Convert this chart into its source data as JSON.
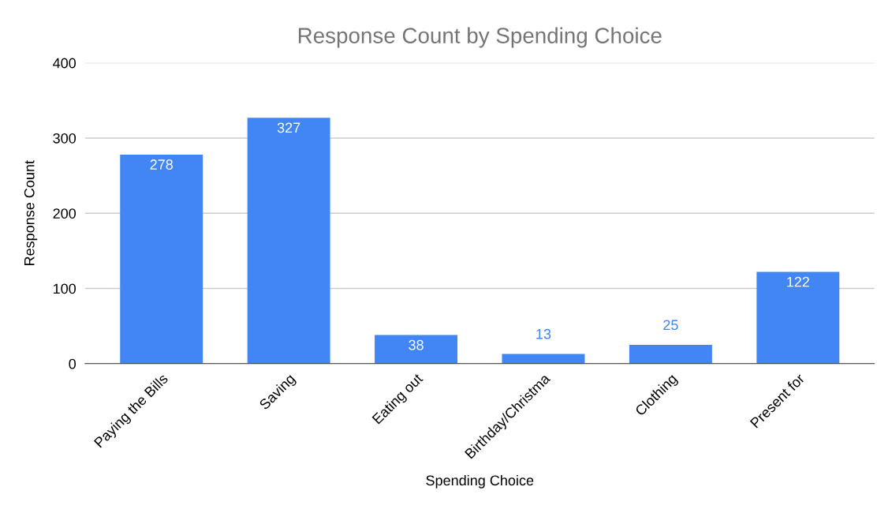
{
  "chart_data": {
    "type": "bar",
    "title": "Response Count by Spending Choice",
    "xlabel": "Spending Choice",
    "ylabel": "Response Count",
    "categories": [
      "Paying the Bills",
      "Saving",
      "Eating out",
      "Birthday/Christma",
      "Clothing",
      "Present for"
    ],
    "values": [
      278,
      327,
      38,
      13,
      25,
      122
    ],
    "color": "#4285f4",
    "ylim": [
      0,
      400
    ],
    "yticks": [
      0,
      100,
      200,
      300,
      400
    ],
    "grid": "y",
    "data_labels": true,
    "legend": false
  }
}
